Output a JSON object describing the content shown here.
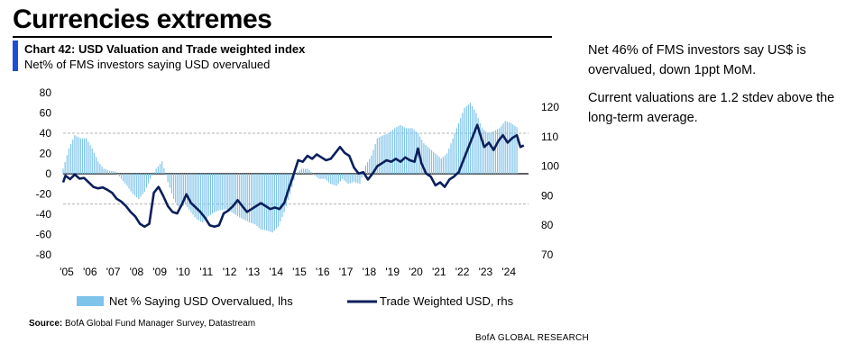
{
  "page_title": "Currencies extremes",
  "chart_title": "Chart 42: USD Valuation and Trade weighted index",
  "chart_subtitle": "Net% of FMS investors saying USD overvalued",
  "notes": [
    "Net 46% of FMS investors say US$ is overvalued, down 1ppt MoM.",
    "Current valuations are 1.2 stdev above the long-term average."
  ],
  "source_label": "Source:",
  "source_text": "BofA Global Fund Manager Survey, Datastream",
  "brand": "BofA GLOBAL RESEARCH",
  "colors": {
    "accent": "#1F4FD8",
    "bars": "#7EC3EA",
    "line": "#0B1F5C",
    "grid": "#9a9a9a"
  },
  "chart_data": {
    "type": "bar+line",
    "x_tick_labels": [
      "'05",
      "'06",
      "'07",
      "'08",
      "'09",
      "'10",
      "'11",
      "'12",
      "'13",
      "'14",
      "'15",
      "'16",
      "'17",
      "'18",
      "'19",
      "'20",
      "'21",
      "'22",
      "'23",
      "'24"
    ],
    "x_range": [
      2005.0,
      2025.0
    ],
    "y_left": {
      "range": [
        -80,
        80
      ],
      "ticks": [
        80,
        60,
        40,
        20,
        0,
        -20,
        -40,
        -60,
        -80
      ]
    },
    "y_right": {
      "range": [
        70,
        120
      ],
      "ticks": [
        120,
        110,
        100,
        90,
        80,
        70
      ]
    },
    "reference_lines_lhs": [
      40,
      0,
      -30
    ],
    "legend": {
      "bars": "Net % Saying USD Overvalued, lhs",
      "line": "Trade Weighted USD, rhs",
      "placement": "bottom"
    },
    "series": [
      {
        "name": "Net % Saying USD Overvalued, lhs",
        "axis": "left",
        "kind": "bar",
        "points": [
          [
            2005.0,
            5
          ],
          [
            2005.25,
            25
          ],
          [
            2005.5,
            38
          ],
          [
            2005.75,
            35
          ],
          [
            2006.0,
            35
          ],
          [
            2006.25,
            25
          ],
          [
            2006.5,
            12
          ],
          [
            2006.75,
            5
          ],
          [
            2007.0,
            3
          ],
          [
            2007.25,
            2
          ],
          [
            2007.5,
            -5
          ],
          [
            2007.75,
            -12
          ],
          [
            2008.0,
            -20
          ],
          [
            2008.25,
            -25
          ],
          [
            2008.5,
            -18
          ],
          [
            2008.75,
            -5
          ],
          [
            2009.0,
            5
          ],
          [
            2009.25,
            12
          ],
          [
            2009.5,
            -8
          ],
          [
            2009.75,
            -25
          ],
          [
            2010.0,
            -35
          ],
          [
            2010.25,
            -30
          ],
          [
            2010.5,
            -38
          ],
          [
            2010.75,
            -45
          ],
          [
            2011.0,
            -48
          ],
          [
            2011.25,
            -42
          ],
          [
            2011.5,
            -38
          ],
          [
            2011.75,
            -36
          ],
          [
            2012.0,
            -35
          ],
          [
            2012.25,
            -38
          ],
          [
            2012.5,
            -42
          ],
          [
            2012.75,
            -45
          ],
          [
            2013.0,
            -48
          ],
          [
            2013.25,
            -50
          ],
          [
            2013.5,
            -55
          ],
          [
            2013.75,
            -56
          ],
          [
            2014.0,
            -58
          ],
          [
            2014.25,
            -52
          ],
          [
            2014.5,
            -38
          ],
          [
            2014.75,
            -20
          ],
          [
            2015.0,
            0
          ],
          [
            2015.25,
            5
          ],
          [
            2015.5,
            5
          ],
          [
            2015.75,
            0
          ],
          [
            2016.0,
            -5
          ],
          [
            2016.25,
            -5
          ],
          [
            2016.5,
            -10
          ],
          [
            2016.75,
            -12
          ],
          [
            2017.0,
            -5
          ],
          [
            2017.25,
            -10
          ],
          [
            2017.5,
            -8
          ],
          [
            2017.75,
            -10
          ],
          [
            2018.0,
            8
          ],
          [
            2018.25,
            18
          ],
          [
            2018.5,
            35
          ],
          [
            2018.75,
            38
          ],
          [
            2019.0,
            40
          ],
          [
            2019.25,
            45
          ],
          [
            2019.5,
            48
          ],
          [
            2019.75,
            45
          ],
          [
            2020.0,
            45
          ],
          [
            2020.25,
            40
          ],
          [
            2020.5,
            30
          ],
          [
            2020.75,
            25
          ],
          [
            2021.0,
            20
          ],
          [
            2021.25,
            15
          ],
          [
            2021.5,
            20
          ],
          [
            2021.75,
            35
          ],
          [
            2022.0,
            50
          ],
          [
            2022.25,
            65
          ],
          [
            2022.5,
            70
          ],
          [
            2022.75,
            60
          ],
          [
            2023.0,
            45
          ],
          [
            2023.25,
            40
          ],
          [
            2023.5,
            42
          ],
          [
            2023.75,
            45
          ],
          [
            2024.0,
            52
          ],
          [
            2024.25,
            50
          ],
          [
            2024.5,
            46
          ]
        ]
      },
      {
        "name": "Trade Weighted USD, rhs",
        "axis": "right",
        "kind": "line",
        "points": [
          [
            2005.0,
            94.5
          ],
          [
            2005.1,
            96.8
          ],
          [
            2005.3,
            95.6
          ],
          [
            2005.5,
            97.2
          ],
          [
            2005.7,
            95.8
          ],
          [
            2005.9,
            96.0
          ],
          [
            2006.1,
            94.5
          ],
          [
            2006.3,
            93.0
          ],
          [
            2006.5,
            92.5
          ],
          [
            2006.7,
            92.8
          ],
          [
            2006.9,
            92.0
          ],
          [
            2007.1,
            91.0
          ],
          [
            2007.3,
            89.0
          ],
          [
            2007.5,
            88.0
          ],
          [
            2007.7,
            86.5
          ],
          [
            2007.9,
            84.5
          ],
          [
            2008.1,
            83.0
          ],
          [
            2008.3,
            80.5
          ],
          [
            2008.5,
            79.5
          ],
          [
            2008.7,
            80.5
          ],
          [
            2008.9,
            91.0
          ],
          [
            2009.1,
            93.0
          ],
          [
            2009.3,
            90.0
          ],
          [
            2009.5,
            86.5
          ],
          [
            2009.7,
            84.5
          ],
          [
            2009.9,
            84.0
          ],
          [
            2010.1,
            87.0
          ],
          [
            2010.3,
            90.5
          ],
          [
            2010.5,
            87.5
          ],
          [
            2010.7,
            86.0
          ],
          [
            2010.9,
            84.5
          ],
          [
            2011.1,
            82.5
          ],
          [
            2011.3,
            80.0
          ],
          [
            2011.5,
            79.5
          ],
          [
            2011.7,
            80.0
          ],
          [
            2011.9,
            84.0
          ],
          [
            2012.1,
            85.0
          ],
          [
            2012.3,
            86.5
          ],
          [
            2012.5,
            88.5
          ],
          [
            2012.7,
            86.5
          ],
          [
            2012.9,
            84.5
          ],
          [
            2013.1,
            85.5
          ],
          [
            2013.3,
            86.5
          ],
          [
            2013.5,
            87.5
          ],
          [
            2013.7,
            86.5
          ],
          [
            2013.9,
            85.5
          ],
          [
            2014.1,
            86.0
          ],
          [
            2014.3,
            85.5
          ],
          [
            2014.5,
            87.5
          ],
          [
            2014.7,
            92.5
          ],
          [
            2014.9,
            97.0
          ],
          [
            2015.1,
            102.0
          ],
          [
            2015.3,
            101.5
          ],
          [
            2015.5,
            103.5
          ],
          [
            2015.7,
            102.5
          ],
          [
            2015.9,
            104.0
          ],
          [
            2016.1,
            103.0
          ],
          [
            2016.3,
            102.0
          ],
          [
            2016.5,
            102.5
          ],
          [
            2016.7,
            104.5
          ],
          [
            2016.9,
            106.5
          ],
          [
            2017.1,
            104.5
          ],
          [
            2017.3,
            103.5
          ],
          [
            2017.5,
            99.5
          ],
          [
            2017.7,
            97.5
          ],
          [
            2017.9,
            98.0
          ],
          [
            2018.1,
            95.5
          ],
          [
            2018.3,
            97.5
          ],
          [
            2018.5,
            100.0
          ],
          [
            2018.7,
            101.0
          ],
          [
            2018.9,
            102.0
          ],
          [
            2019.1,
            101.5
          ],
          [
            2019.3,
            102.5
          ],
          [
            2019.5,
            101.5
          ],
          [
            2019.7,
            103.0
          ],
          [
            2019.9,
            102.0
          ],
          [
            2020.1,
            101.5
          ],
          [
            2020.25,
            106.0
          ],
          [
            2020.4,
            101.0
          ],
          [
            2020.6,
            97.5
          ],
          [
            2020.8,
            96.5
          ],
          [
            2021.0,
            93.5
          ],
          [
            2021.2,
            94.5
          ],
          [
            2021.4,
            93.0
          ],
          [
            2021.6,
            95.5
          ],
          [
            2021.8,
            96.5
          ],
          [
            2022.0,
            98.0
          ],
          [
            2022.2,
            102.0
          ],
          [
            2022.4,
            106.0
          ],
          [
            2022.6,
            110.0
          ],
          [
            2022.8,
            114.0
          ],
          [
            2022.95,
            110.0
          ],
          [
            2023.1,
            106.5
          ],
          [
            2023.3,
            108.0
          ],
          [
            2023.5,
            105.5
          ],
          [
            2023.7,
            108.5
          ],
          [
            2023.9,
            110.5
          ],
          [
            2024.1,
            108.0
          ],
          [
            2024.3,
            109.5
          ],
          [
            2024.5,
            110.5
          ],
          [
            2024.65,
            106.5
          ],
          [
            2024.8,
            107.0
          ]
        ]
      }
    ]
  }
}
